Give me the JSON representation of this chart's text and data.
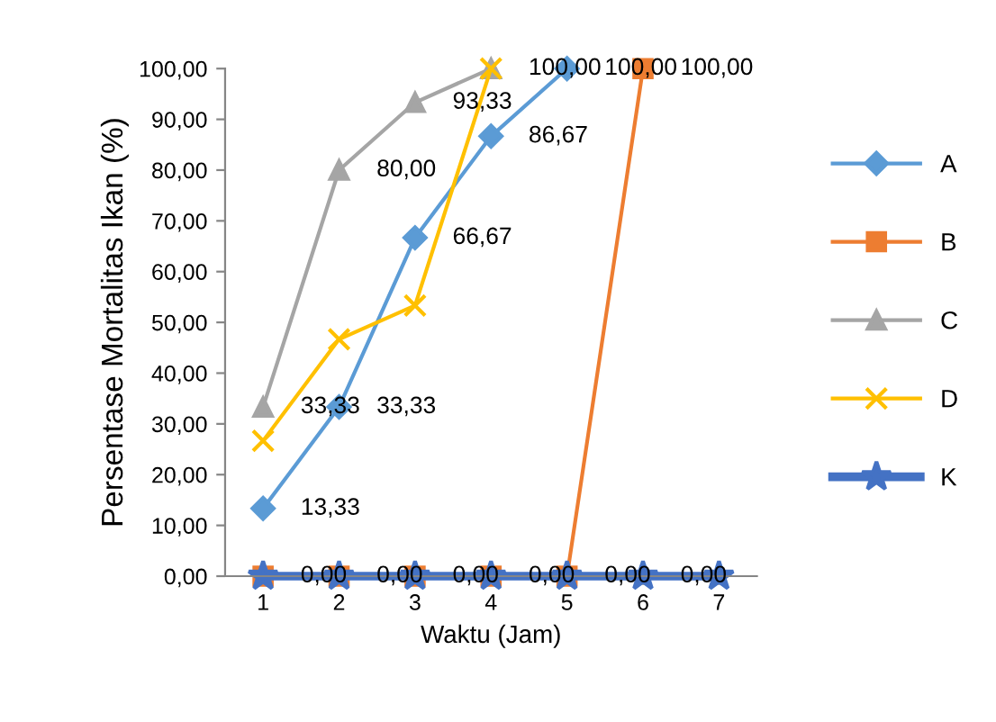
{
  "chart_data": {
    "type": "line",
    "xlabel": "Waktu (Jam)",
    "ylabel": "Persentase Mortalitas Ikan (%)",
    "categories": [
      "1",
      "2",
      "3",
      "4",
      "5",
      "6",
      "7"
    ],
    "series": [
      {
        "name": "A",
        "color": "#5b9bd5",
        "marker": "diamond",
        "values": [
          13.33,
          33.33,
          66.67,
          86.67,
          100,
          null,
          null
        ]
      },
      {
        "name": "B",
        "color": "#ed7d31",
        "marker": "square",
        "values": [
          0,
          0,
          0,
          0,
          0,
          100,
          null
        ]
      },
      {
        "name": "C",
        "color": "#a5a5a5",
        "marker": "triangle",
        "values": [
          33.33,
          80,
          93.33,
          100,
          null,
          null,
          null
        ]
      },
      {
        "name": "D",
        "color": "#ffc000",
        "marker": "cross",
        "values": [
          26.67,
          46.67,
          53.33,
          100,
          null,
          null,
          null
        ]
      },
      {
        "name": "K",
        "color": "#4472c4",
        "marker": "star",
        "values": [
          0,
          0,
          0,
          0,
          0,
          0,
          0
        ]
      }
    ],
    "ylim": [
      0,
      100
    ],
    "yticks": [
      {
        "value": 0,
        "label": "0,00"
      },
      {
        "value": 10,
        "label": "10,00"
      },
      {
        "value": 20,
        "label": "20,00"
      },
      {
        "value": 30,
        "label": "30,00"
      },
      {
        "value": 40,
        "label": "40,00"
      },
      {
        "value": 50,
        "label": "50,00"
      },
      {
        "value": 60,
        "label": "60,00"
      },
      {
        "value": 70,
        "label": "70,00"
      },
      {
        "value": 80,
        "label": "80,00"
      },
      {
        "value": 90,
        "label": "90,00"
      },
      {
        "value": 100,
        "label": "100,00"
      }
    ],
    "grid": false,
    "legend": "right",
    "annotations": [
      {
        "text": "13,33",
        "x": "1",
        "y": 13.33
      },
      {
        "text": "33,33",
        "x": "1",
        "y": 33.33
      },
      {
        "text": "33,33",
        "x": "2",
        "y": 33.33
      },
      {
        "text": "66,67",
        "x": "3",
        "y": 66.67
      },
      {
        "text": "80,00",
        "x": "2",
        "y": 80
      },
      {
        "text": "93,33",
        "x": "3",
        "y": 93.33
      },
      {
        "text": "86,67",
        "x": "4",
        "y": 86.67
      },
      {
        "text": "100,00",
        "x": "4",
        "y": 100
      },
      {
        "text": "100,00",
        "x": "5",
        "y": 100
      },
      {
        "text": "100,00",
        "x": "6",
        "y": 100
      },
      {
        "text": "0,00",
        "x": "1",
        "y": 0
      },
      {
        "text": "0,00",
        "x": "2",
        "y": 0
      },
      {
        "text": "0,00",
        "x": "3",
        "y": 0
      },
      {
        "text": "0,00",
        "x": "4",
        "y": 0
      },
      {
        "text": "0,00",
        "x": "5",
        "y": 0
      },
      {
        "text": "0,00",
        "x": "6",
        "y": 0
      }
    ]
  }
}
